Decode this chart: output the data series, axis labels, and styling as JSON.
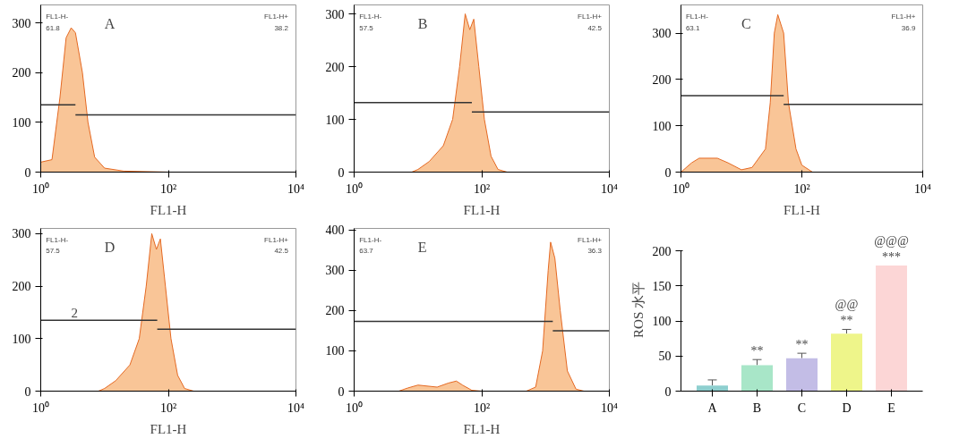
{
  "chart_data": [
    {
      "type": "area",
      "title": "A",
      "xlabel": "FL1-H",
      "log": "x",
      "xlim": [
        1,
        10000
      ],
      "ylim": [
        0,
        336
      ],
      "xticks": [
        {
          "value": 1,
          "label": "10⁰"
        },
        {
          "value": 100,
          "label": "10²"
        },
        {
          "value": 10000,
          "label": "10⁴"
        }
      ],
      "yticks": [
        0,
        100,
        200,
        300
      ],
      "annotations": [
        "FL1-H-",
        "61.8",
        "FL1-H+",
        "38.2"
      ],
      "series": [
        {
          "type": "area",
          "color": "#f8bf8c",
          "x": [
            1,
            1.5,
            2,
            2.5,
            3,
            3.5,
            4.5,
            5.5,
            7,
            10,
            20,
            100,
            10000
          ],
          "values": [
            20,
            25,
            150,
            270,
            290,
            280,
            200,
            100,
            30,
            8,
            2,
            0,
            0
          ]
        },
        {
          "type": "line",
          "color": "#333333",
          "x": [
            1,
            3.5
          ],
          "values": [
            135,
            135
          ]
        },
        {
          "type": "line",
          "color": "#333333",
          "x": [
            3.5,
            10000
          ],
          "values": [
            115,
            115
          ]
        }
      ]
    },
    {
      "type": "area",
      "title": "B",
      "xlabel": "FL1-H",
      "log": "x",
      "xlim": [
        1,
        10000
      ],
      "ylim": [
        0,
        317
      ],
      "xticks": [
        {
          "value": 1,
          "label": "10⁰"
        },
        {
          "value": 100,
          "label": "10²"
        },
        {
          "value": 10000,
          "label": "10⁴"
        }
      ],
      "yticks": [
        0,
        100,
        200,
        300
      ],
      "annotations": [
        "FL1-H-",
        "57.5",
        "FL1-H+",
        "42.5"
      ],
      "series": [
        {
          "type": "area",
          "color": "#f8bf8c",
          "x": [
            1,
            8,
            10,
            15,
            25,
            35,
            45,
            55,
            65,
            75,
            90,
            110,
            140,
            180,
            250,
            10000
          ],
          "values": [
            0,
            0,
            5,
            20,
            50,
            100,
            200,
            300,
            270,
            290,
            200,
            100,
            30,
            5,
            0,
            0
          ]
        },
        {
          "type": "line",
          "color": "#333333",
          "x": [
            1,
            70
          ],
          "values": [
            132,
            132
          ]
        },
        {
          "type": "line",
          "color": "#333333",
          "x": [
            70,
            10000
          ],
          "values": [
            114,
            114
          ]
        }
      ]
    },
    {
      "type": "area",
      "title": "C",
      "xlabel": "FL1-H",
      "log": "x",
      "xlim": [
        1,
        10000
      ],
      "ylim": [
        0,
        361
      ],
      "xticks": [
        {
          "value": 1,
          "label": "10⁰"
        },
        {
          "value": 100,
          "label": "10²"
        },
        {
          "value": 10000,
          "label": "10⁴"
        }
      ],
      "yticks": [
        0,
        100,
        200,
        300
      ],
      "annotations": [
        "FL1-H-",
        "63.1",
        "FL1-H+",
        "36.9"
      ],
      "series": [
        {
          "type": "area",
          "color": "#f8bf8c",
          "x": [
            1,
            1.5,
            2,
            4,
            6,
            10,
            15,
            25,
            30,
            35,
            40,
            50,
            60,
            80,
            100,
            150,
            10000
          ],
          "values": [
            0,
            20,
            30,
            30,
            20,
            5,
            10,
            50,
            150,
            300,
            340,
            300,
            150,
            50,
            15,
            0,
            0
          ]
        },
        {
          "type": "line",
          "color": "#333333",
          "x": [
            1,
            50
          ],
          "values": [
            165,
            165
          ]
        },
        {
          "type": "line",
          "color": "#333333",
          "x": [
            50,
            10000
          ],
          "values": [
            146,
            146
          ]
        }
      ]
    },
    {
      "type": "area",
      "title": "D",
      "xlabel": "FL1-H",
      "log": "x",
      "xlim": [
        1,
        10000
      ],
      "ylim": [
        0,
        310
      ],
      "xticks": [
        {
          "value": 1,
          "label": "10⁰"
        },
        {
          "value": 100,
          "label": "10²"
        },
        {
          "value": 10000,
          "label": "10⁴"
        }
      ],
      "yticks": [
        0,
        100,
        200,
        300
      ],
      "annotations": [
        "FL1-H-",
        "57.5",
        "FL1-H+",
        "42.5",
        {
          "text": "2",
          "x": 3,
          "y": 135
        }
      ],
      "series": [
        {
          "type": "area",
          "color": "#f8bf8c",
          "x": [
            1,
            8,
            10,
            15,
            25,
            35,
            45,
            55,
            65,
            75,
            90,
            110,
            140,
            180,
            250,
            10000
          ],
          "values": [
            0,
            0,
            5,
            20,
            50,
            100,
            200,
            300,
            270,
            290,
            200,
            100,
            30,
            5,
            0,
            0
          ]
        },
        {
          "type": "line",
          "color": "#333333",
          "x": [
            1,
            67
          ],
          "values": [
            135,
            135
          ]
        },
        {
          "type": "line",
          "color": "#333333",
          "x": [
            67,
            10000
          ],
          "values": [
            118,
            118
          ]
        }
      ]
    },
    {
      "type": "area",
      "title": "E",
      "xlabel": "FL1-H",
      "log": "x",
      "xlim": [
        1,
        10000
      ],
      "ylim": [
        0,
        404
      ],
      "xticks": [
        {
          "value": 1,
          "label": "10⁰"
        },
        {
          "value": 100,
          "label": "10²"
        },
        {
          "value": 10000,
          "label": "10⁴"
        }
      ],
      "yticks": [
        0,
        100,
        200,
        300,
        400
      ],
      "annotations": [
        "FL1-H-",
        "63.7",
        "FL1-H+",
        "36.3"
      ],
      "series": [
        {
          "type": "area",
          "color": "#f8bf8c",
          "x": [
            1,
            5,
            7,
            10,
            20,
            30,
            40,
            50,
            70,
            100,
            500,
            700,
            900,
            1100,
            1200,
            1400,
            1700,
            2200,
            3000,
            4000,
            10000
          ],
          "values": [
            0,
            0,
            8,
            15,
            10,
            20,
            25,
            15,
            2,
            0,
            0,
            10,
            100,
            300,
            370,
            330,
            200,
            50,
            5,
            0,
            0
          ]
        },
        {
          "type": "line",
          "color": "#333333",
          "x": [
            1,
            1300
          ],
          "values": [
            173,
            173
          ]
        },
        {
          "type": "line",
          "color": "#333333",
          "x": [
            1300,
            10000
          ],
          "values": [
            150,
            150
          ]
        }
      ]
    },
    {
      "type": "bar",
      "ylabel": "ROS 水平",
      "categories": [
        "A",
        "B",
        "C",
        "D",
        "E"
      ],
      "values": [
        8,
        37,
        47,
        82,
        179
      ],
      "colors": [
        "#8ecfcf",
        "#a8e6c8",
        "#c3bde6",
        "#eef58a",
        "#fcd6d6"
      ],
      "errors": [
        [
          8,
          16
        ],
        [
          37,
          45
        ],
        [
          47,
          54
        ],
        [
          82,
          88
        ],
        null
      ],
      "ylim": [
        0,
        200
      ],
      "yticks": [
        0,
        50,
        100,
        150,
        200
      ],
      "annotations": [
        {
          "text": "**",
          "x": "B",
          "y": 45
        },
        {
          "text": "**",
          "x": "C",
          "y": 54
        },
        {
          "text": "**",
          "x": "D",
          "y": 88
        },
        {
          "text": "@@",
          "x": "D",
          "y": 88
        },
        {
          "text": "***",
          "x": "E",
          "y": 179
        },
        {
          "text": "@@@",
          "x": "E",
          "y": 179
        }
      ]
    }
  ]
}
